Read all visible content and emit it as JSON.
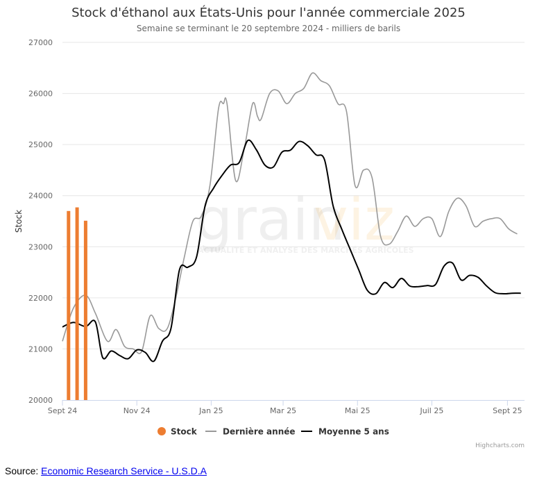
{
  "chart_data": {
    "type": "line",
    "title": "Stock d'éthanol aux États-Unis pour l'année commerciale 2025",
    "subtitle": "Semaine se terminant le 20 septembre 2024 - milliers de barils",
    "ylabel": "Stock",
    "ylim": [
      20000,
      27000
    ],
    "y_ticks": [
      "20000",
      "21000",
      "22000",
      "23000",
      "24000",
      "25000",
      "26000",
      "27000"
    ],
    "x_ticks": [
      "Sept 24",
      "Nov 24",
      "Jan 25",
      "Mar 25",
      "Mai 25",
      "Juil 25",
      "Sept 25"
    ],
    "grid": true,
    "legend_position": "bottom",
    "credits": "Highcharts.com",
    "watermark": {
      "brand_a": "grain",
      "brand_b": "viz",
      "tagline": "ACTUALITÉ ET ANALYSE DES MARCHÉS AGRICOLES"
    },
    "series": [
      {
        "name": "Stock",
        "kind": "column",
        "color": "#ed7d31",
        "x": [
          "2024-09-06",
          "2024-09-13",
          "2024-09-20"
        ],
        "values": [
          23700,
          23770,
          23510
        ]
      },
      {
        "name": "Dernière année",
        "kind": "line",
        "color": "#999999",
        "x": [
          "2024-09-01",
          "2024-09-10",
          "2024-09-20",
          "2024-09-28",
          "2024-10-08",
          "2024-10-15",
          "2024-10-22",
          "2024-10-29",
          "2024-11-05",
          "2024-11-12",
          "2024-11-19",
          "2024-11-26",
          "2024-12-03",
          "2024-12-10",
          "2024-12-17",
          "2024-12-24",
          "2024-12-31",
          "2025-01-07",
          "2025-01-11",
          "2025-01-14",
          "2025-01-21",
          "2025-01-28",
          "2025-02-04",
          "2025-02-08",
          "2025-02-11",
          "2025-02-18",
          "2025-02-25",
          "2025-03-04",
          "2025-03-11",
          "2025-03-18",
          "2025-03-25",
          "2025-04-01",
          "2025-04-08",
          "2025-04-15",
          "2025-04-22",
          "2025-04-29",
          "2025-05-06",
          "2025-05-13",
          "2025-05-20",
          "2025-05-27",
          "2025-06-03",
          "2025-06-10",
          "2025-06-17",
          "2025-06-24",
          "2025-07-01",
          "2025-07-08",
          "2025-07-15",
          "2025-07-22",
          "2025-07-29",
          "2025-08-05",
          "2025-08-12",
          "2025-08-19",
          "2025-08-26",
          "2025-09-02",
          "2025-09-09"
        ],
        "values": [
          21150,
          21800,
          22050,
          21700,
          21150,
          21380,
          21050,
          21000,
          20950,
          21650,
          21400,
          21400,
          22000,
          22800,
          23500,
          23600,
          24200,
          25700,
          25800,
          25800,
          24300,
          24900,
          25800,
          25550,
          25500,
          26000,
          26050,
          25800,
          26000,
          26100,
          26400,
          26250,
          26150,
          25800,
          25650,
          24200,
          24500,
          24350,
          23200,
          23050,
          23300,
          23600,
          23400,
          23550,
          23550,
          23200,
          23700,
          23950,
          23800,
          23400,
          23500,
          23550,
          23550,
          23350,
          23250
        ]
      },
      {
        "name": "Moyenne 5 ans",
        "kind": "line",
        "color": "#000000",
        "x": [
          "2024-09-01",
          "2024-09-10",
          "2024-09-20",
          "2024-09-28",
          "2024-10-04",
          "2024-10-11",
          "2024-10-18",
          "2024-10-25",
          "2024-11-01",
          "2024-11-08",
          "2024-11-15",
          "2024-11-22",
          "2024-11-29",
          "2024-12-06",
          "2024-12-13",
          "2024-12-20",
          "2024-12-27",
          "2025-01-03",
          "2025-01-10",
          "2025-01-17",
          "2025-01-24",
          "2025-01-31",
          "2025-02-07",
          "2025-02-14",
          "2025-02-21",
          "2025-02-28",
          "2025-03-07",
          "2025-03-14",
          "2025-03-21",
          "2025-03-28",
          "2025-04-04",
          "2025-04-11",
          "2025-04-18",
          "2025-04-25",
          "2025-05-02",
          "2025-05-09",
          "2025-05-16",
          "2025-05-23",
          "2025-05-30",
          "2025-06-06",
          "2025-06-13",
          "2025-06-20",
          "2025-06-27",
          "2025-07-04",
          "2025-07-11",
          "2025-07-18",
          "2025-07-25",
          "2025-08-01",
          "2025-08-08",
          "2025-08-15",
          "2025-08-22",
          "2025-08-29",
          "2025-09-05",
          "2025-09-12"
        ],
        "values": [
          21430,
          21520,
          21440,
          21530,
          20830,
          20960,
          20870,
          20810,
          20980,
          20930,
          20760,
          21150,
          21400,
          22550,
          22600,
          22800,
          23800,
          24150,
          24400,
          24600,
          24650,
          25080,
          24900,
          24600,
          24560,
          24850,
          24890,
          25060,
          24980,
          24800,
          24700,
          23800,
          23350,
          22950,
          22550,
          22150,
          22080,
          22300,
          22200,
          22380,
          22230,
          22220,
          22240,
          22260,
          22620,
          22680,
          22350,
          22440,
          22400,
          22230,
          22100,
          22080,
          22090,
          22090
        ]
      }
    ]
  },
  "source": {
    "label": "Source:",
    "link_text": "Economic Research Service - U.S.D.A"
  }
}
